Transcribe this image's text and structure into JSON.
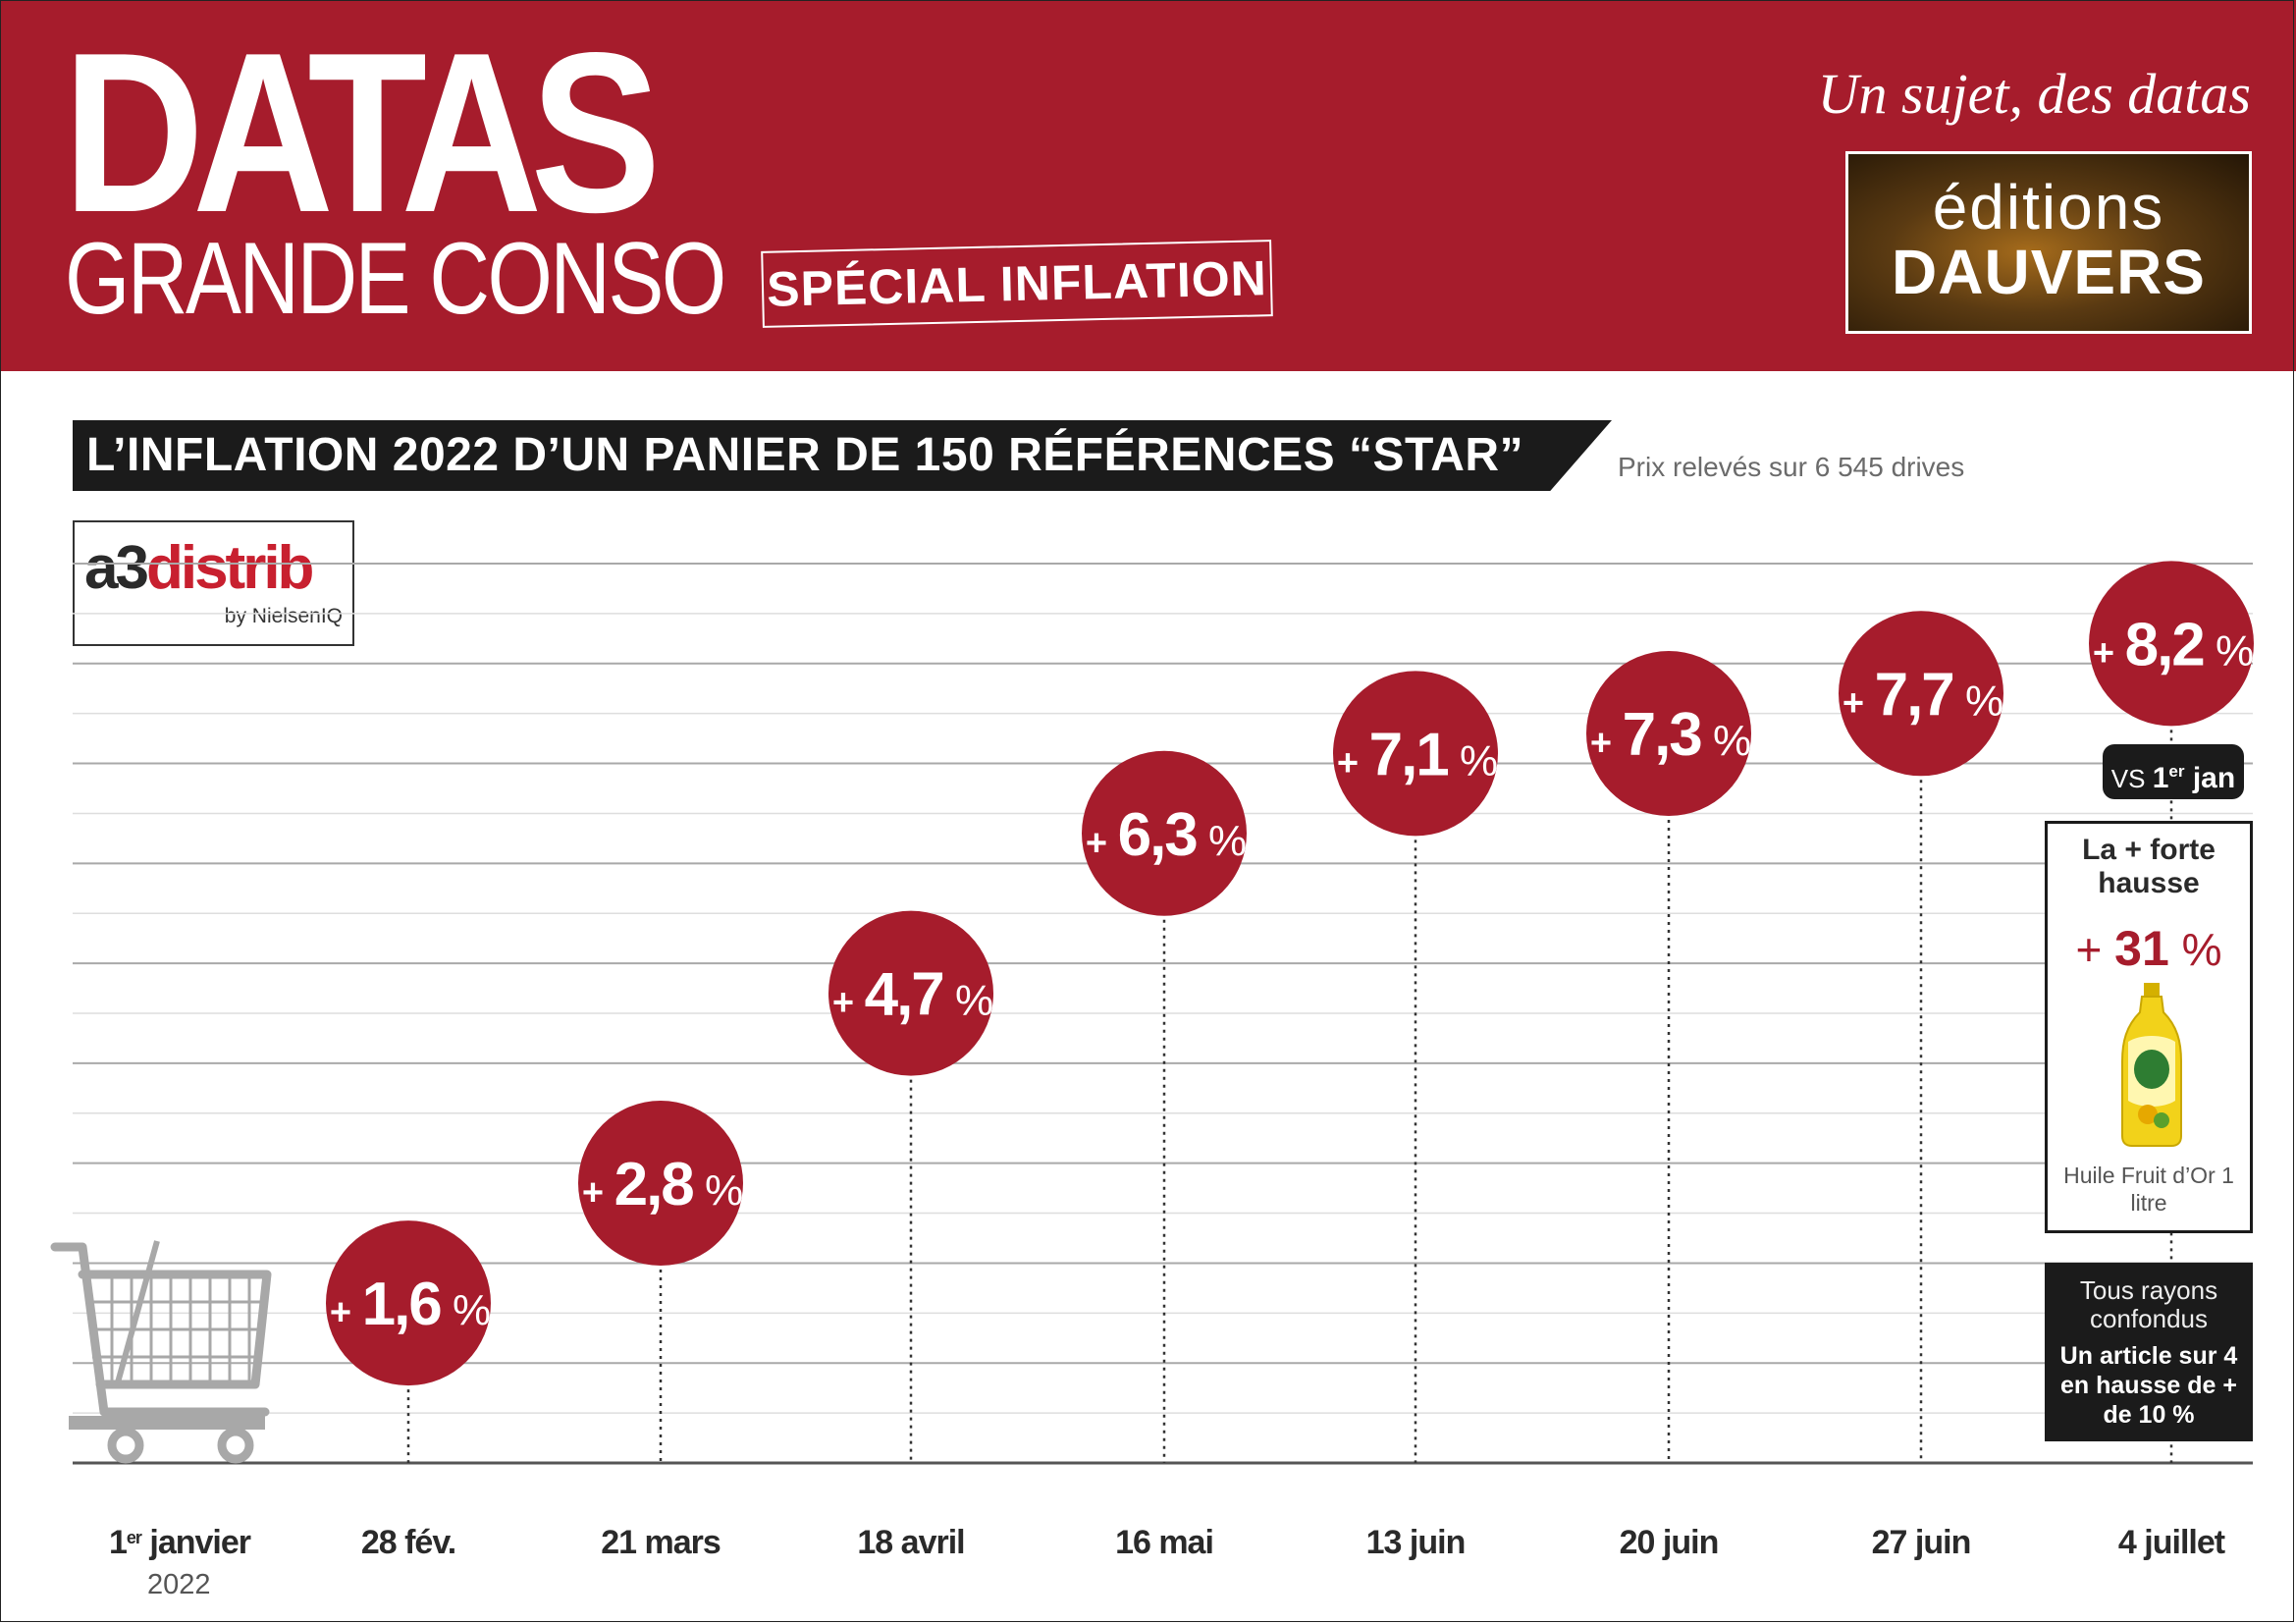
{
  "header": {
    "brand_line1": "DATAS",
    "brand_line2": "GRANDE CONSO",
    "badge": "SPÉCIAL INFLATION",
    "tagline": "Un sujet, des datas",
    "publisher_line1": "éditions",
    "publisher_line2": "DAUVERS",
    "accent_color": "#a61c2c"
  },
  "title": "L’INFLATION 2022 D’UN PANIER DE 150 RÉFÉRENCES “STAR”",
  "subtitle": "Prix relevés sur 6 545 drives",
  "source_logo": {
    "main_a": "a3",
    "main_b": "distrib",
    "by": "by NielsenIQ"
  },
  "annotations": {
    "vs_prefix": "VS",
    "vs_day": "1",
    "vs_sup": "er",
    "vs_month": "jan",
    "highest_title": "La + forte hausse",
    "highest_plus": "+",
    "highest_value": "31",
    "highest_unit": "%",
    "highest_product": "Huile Fruit d’Or 1 litre",
    "all_aisles": "Tous rayons confondus",
    "one_in_four": "Un article sur 4 en hausse de + de 10 %",
    "year_label": "2022"
  },
  "chart_data": {
    "type": "scatter",
    "title": "L’INFLATION 2022 D’UN PANIER DE 150 RÉFÉRENCES “STAR”",
    "subtitle": "Prix relevés sur 6 545 drives",
    "unit": "%",
    "x": [
      "1er janvier 2022",
      "28 fév.",
      "21 mars",
      "18 avril",
      "16 mai",
      "13 juin",
      "20 juin",
      "27 juin",
      "4 juillet"
    ],
    "x_labels": [
      {
        "main": "1",
        "sup": "er",
        "rest": " janvier"
      },
      {
        "main": "28 fév.",
        "sup": "",
        "rest": ""
      },
      {
        "main": "21 mars",
        "sup": "",
        "rest": ""
      },
      {
        "main": "18 avril",
        "sup": "",
        "rest": ""
      },
      {
        "main": "16 mai",
        "sup": "",
        "rest": ""
      },
      {
        "main": "13 juin",
        "sup": "",
        "rest": ""
      },
      {
        "main": "20 juin",
        "sup": "",
        "rest": ""
      },
      {
        "main": "27 juin",
        "sup": "",
        "rest": ""
      },
      {
        "main": "4 juillet",
        "sup": "",
        "rest": ""
      }
    ],
    "values": [
      null,
      1.6,
      2.8,
      4.7,
      6.3,
      7.1,
      7.3,
      7.7,
      8.2
    ],
    "value_labels": [
      "",
      "1,6",
      "2,8",
      "4,7",
      "6,3",
      "7,1",
      "7,3",
      "7,7",
      "8,2"
    ],
    "ylim": [
      0,
      9
    ],
    "grid": true,
    "marker_color": "#a61c2c"
  }
}
